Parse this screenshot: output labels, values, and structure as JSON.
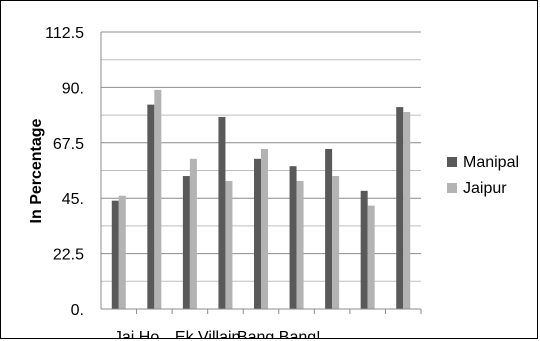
{
  "chart_data": {
    "type": "bar",
    "categories": [
      "Jai Ho",
      "",
      "Ek Villain",
      "",
      "Bang Bang!",
      "",
      "",
      "",
      ""
    ],
    "series": [
      {
        "name": "Manipal",
        "values": [
          44,
          83,
          54,
          78,
          61,
          58,
          65,
          48,
          82
        ],
        "color": "#595959"
      },
      {
        "name": "Jaipur",
        "values": [
          46,
          89,
          61,
          52,
          65,
          52,
          54,
          42,
          80
        ],
        "color": "#b3b3b3"
      }
    ],
    "title": "",
    "xlabel": "",
    "ylabel": "In Percentage",
    "ylim": [
      0,
      112.5
    ],
    "yticks": [
      "0.",
      "22.5",
      "45.",
      "67.5",
      "90.",
      "112.5"
    ],
    "grid": true,
    "legend_position": "right"
  }
}
